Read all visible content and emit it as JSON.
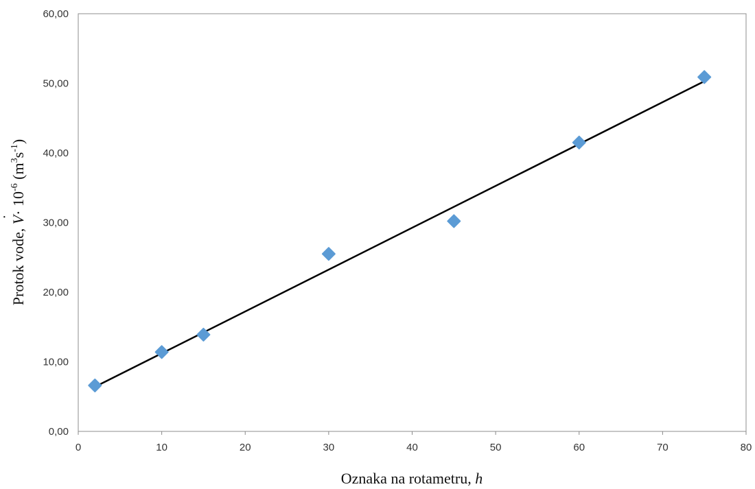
{
  "chart_data": {
    "type": "scatter",
    "title": "",
    "xlabel": {
      "text": "Oznaka na rotametru, ",
      "symbol": "h"
    },
    "ylabel": {
      "prefix": "Protok vode, ",
      "symbol": "V",
      "factor": "· 10",
      "factor_exp": "-6",
      "unit_open": " (m",
      "unit_exp1": "3",
      "unit_mid": "s",
      "unit_exp2": "-1",
      "unit_close": ")"
    },
    "xlim": [
      0,
      80
    ],
    "ylim": [
      0,
      60
    ],
    "x_ticks": [
      0,
      10,
      20,
      30,
      40,
      50,
      60,
      70,
      80
    ],
    "y_ticks": [
      {
        "value": 0,
        "label": "0,00"
      },
      {
        "value": 10,
        "label": "10,00"
      },
      {
        "value": 20,
        "label": "20,00"
      },
      {
        "value": 30,
        "label": "30,00"
      },
      {
        "value": 40,
        "label": "40,00"
      },
      {
        "value": 50,
        "label": "50,00"
      },
      {
        "value": 60,
        "label": "60,00"
      }
    ],
    "grid": false,
    "legend": "none",
    "series": [
      {
        "x": [
          2,
          10,
          15,
          30,
          45,
          60,
          75
        ],
        "y": [
          6.6,
          11.4,
          13.9,
          25.5,
          30.2,
          41.5,
          50.9
        ]
      }
    ],
    "trendline": {
      "x": [
        2,
        75
      ],
      "y": [
        6.4,
        50.3
      ]
    },
    "colors": {
      "marker": "#5b9bd5",
      "trendline": "#000000",
      "axis": "#888888"
    }
  }
}
